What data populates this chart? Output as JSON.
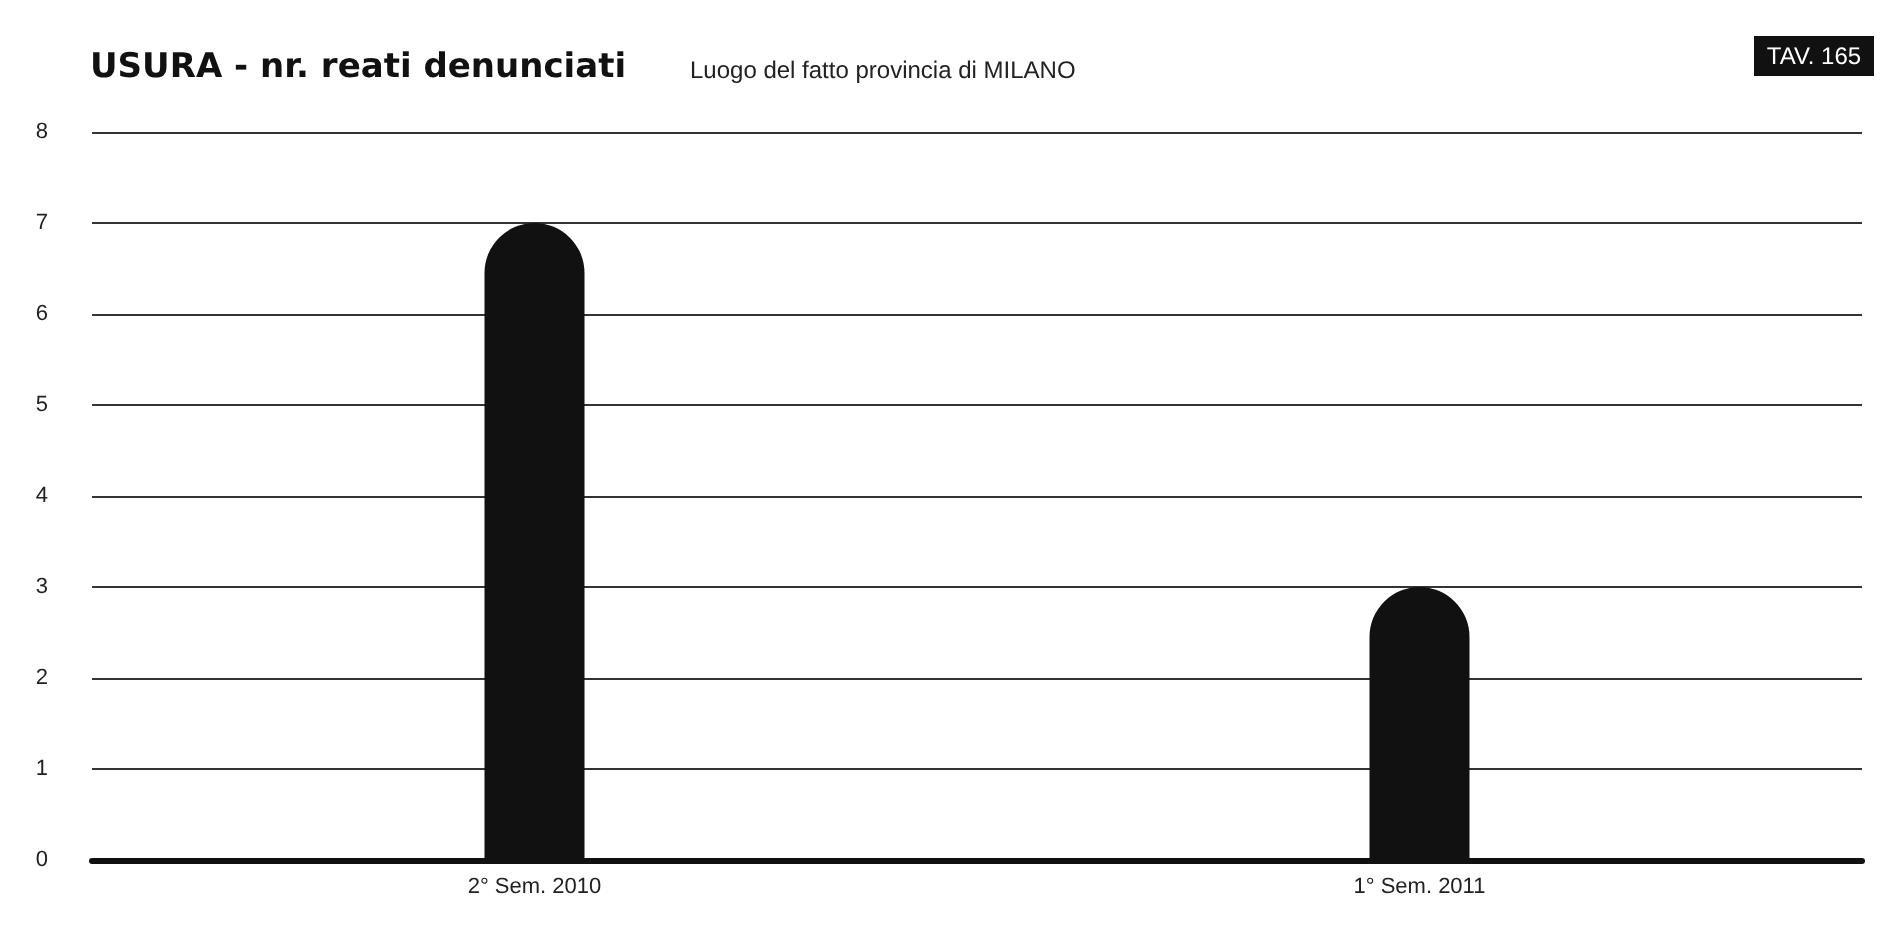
{
  "chart_data": {
    "type": "bar",
    "title": "USURA - nr. reati denunciati",
    "subtitle": "Luogo del fatto provincia di MILANO",
    "annotations": [
      "TAV. 165"
    ],
    "categories": [
      "2° Sem. 2010",
      "1° Sem. 2011"
    ],
    "values": [
      7,
      3
    ],
    "color": "#111111",
    "ylim": [
      0,
      8
    ],
    "yticks": [
      0,
      1,
      2,
      3,
      4,
      5,
      6,
      7,
      8
    ],
    "grid": "y"
  }
}
